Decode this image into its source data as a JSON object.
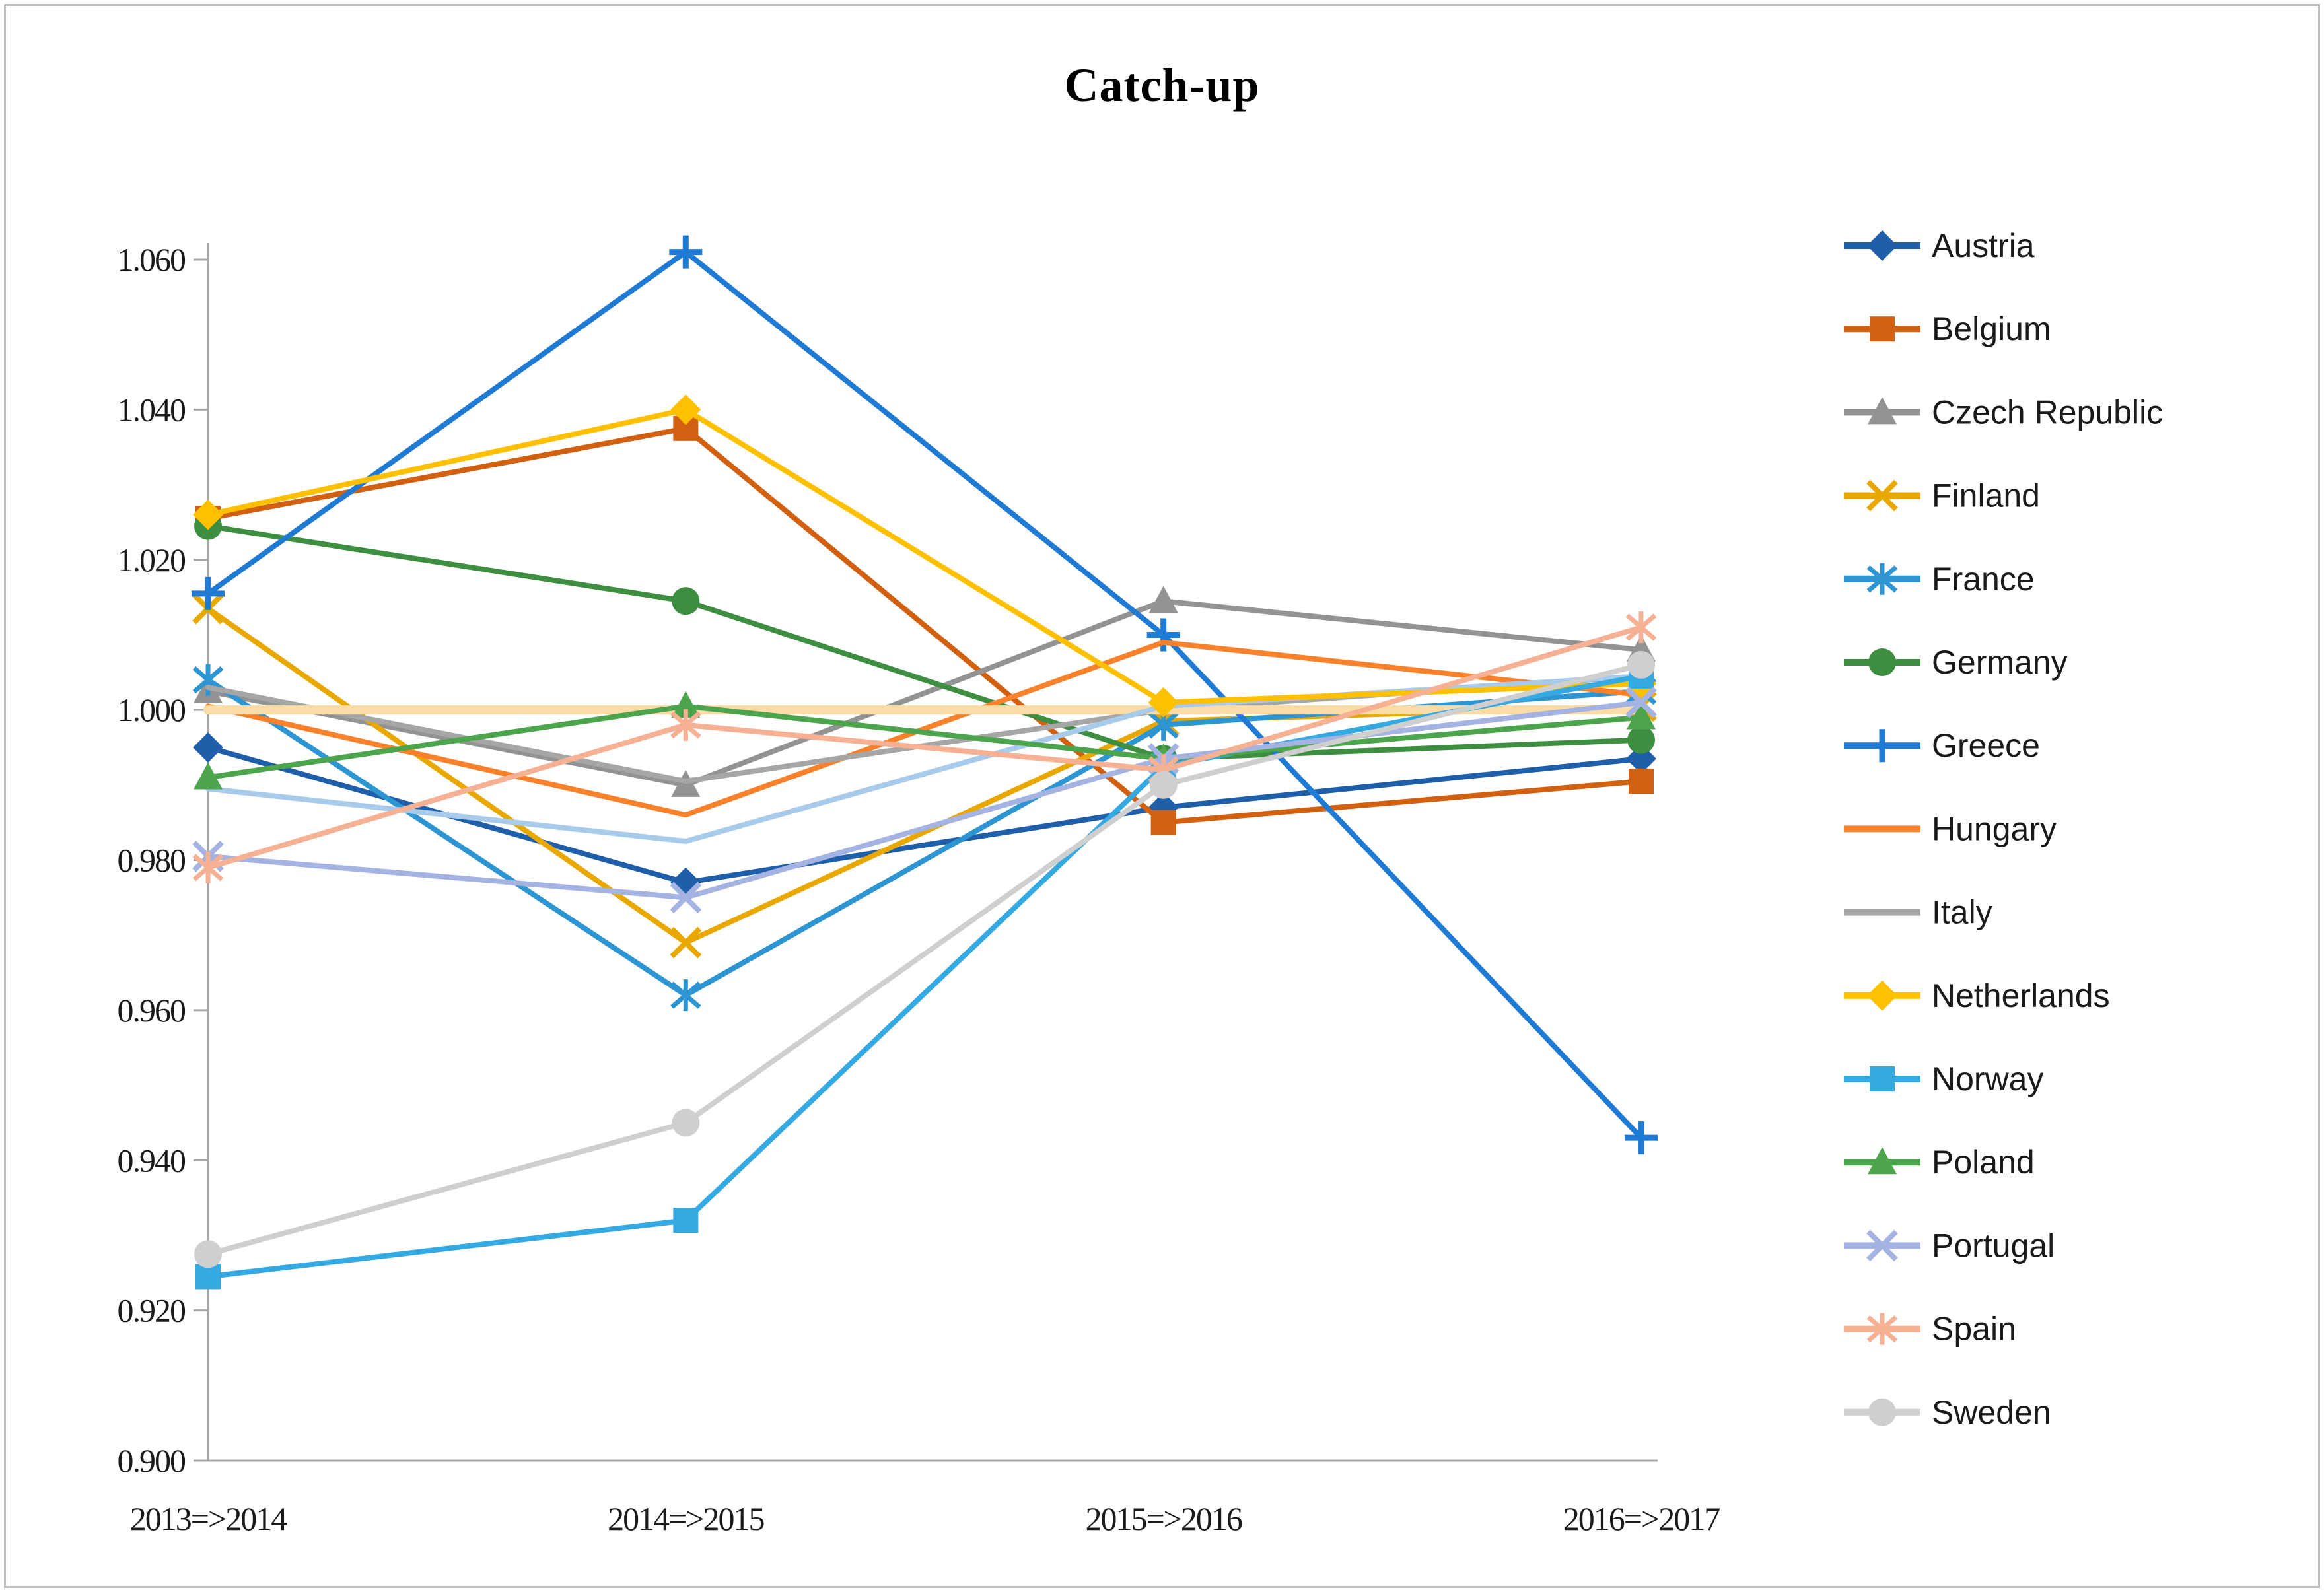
{
  "chart_data": {
    "type": "line",
    "title": "Catch-up",
    "categories": [
      "2013=>2014",
      "2014=>2015",
      "2015=>2016",
      "2016=>2017"
    ],
    "xlabel": "",
    "ylabel": "",
    "y_axis": {
      "min": 0.9,
      "max": 1.06,
      "step": 0.02,
      "tick_labels": [
        "0.900",
        "0.920",
        "0.940",
        "0.960",
        "0.980",
        "1.000",
        "1.020",
        "1.040",
        "1.060"
      ]
    },
    "grid": "off",
    "legend_position": "right",
    "series": [
      {
        "name": "Austria",
        "color": "#1F5EA8",
        "marker": "diamond",
        "values": [
          0.995,
          0.977,
          0.987,
          0.9935
        ]
      },
      {
        "name": "Belgium",
        "color": "#D26011",
        "marker": "square",
        "values": [
          1.0255,
          1.0375,
          0.985,
          0.9905
        ]
      },
      {
        "name": "Czech Republic",
        "color": "#939393",
        "marker": "triangle",
        "values": [
          1.0025,
          0.99,
          1.0145,
          1.008
        ]
      },
      {
        "name": "Finland",
        "color": "#E9A800",
        "marker": "x",
        "values": [
          1.0135,
          0.969,
          0.9985,
          1.0005
        ]
      },
      {
        "name": "France",
        "color": "#2E95D3",
        "marker": "asterisk",
        "values": [
          1.004,
          0.962,
          0.998,
          1.0025
        ]
      },
      {
        "name": "Germany",
        "color": "#3E8E41",
        "marker": "circle",
        "values": [
          1.0245,
          1.0145,
          0.9935,
          0.996
        ]
      },
      {
        "name": "Greece",
        "color": "#1F7AD4",
        "marker": "plus",
        "values": [
          1.0155,
          1.061,
          1.01,
          0.943
        ]
      },
      {
        "name": "Hungary",
        "color": "#F8822C",
        "marker": "none",
        "values": [
          1.0005,
          0.986,
          1.009,
          1.002
        ]
      },
      {
        "name": "Italy",
        "color": "#A6A6A6",
        "marker": "none",
        "values": [
          1.003,
          0.9905,
          1.0,
          1.0045
        ]
      },
      {
        "name": "Netherlands",
        "color": "#FFC000",
        "marker": "diamond",
        "values": [
          1.026,
          1.04,
          1.001,
          1.0035
        ]
      },
      {
        "name": "Norway",
        "color": "#35A9E1",
        "marker": "square",
        "values": [
          0.9245,
          0.932,
          0.9925,
          1.0045
        ]
      },
      {
        "name": "Poland",
        "color": "#4CA54C",
        "marker": "triangle",
        "values": [
          0.991,
          1.0005,
          0.9935,
          0.999
        ]
      },
      {
        "name": "Portugal",
        "color": "#A4B3E1",
        "marker": "x",
        "values": [
          0.9805,
          0.975,
          0.9935,
          1.001
        ]
      },
      {
        "name": "Spain",
        "color": "#F6B094",
        "marker": "asterisk",
        "values": [
          0.979,
          0.998,
          0.992,
          1.011
        ]
      },
      {
        "name": "Sweden",
        "color": "#CFCFCF",
        "marker": "circle",
        "values": [
          0.9275,
          0.945,
          0.99,
          1.006
        ]
      }
    ],
    "unlabeled_lines": [
      {
        "name": "pale-blue-line",
        "color": "#A8CBEC",
        "marker": "none",
        "values": [
          0.9895,
          0.9825,
          1.0005,
          1.0045
        ]
      },
      {
        "name": "reference-line-1.000",
        "color": "#FBDCA6",
        "marker": "none",
        "values": [
          1.0,
          1.0,
          1.0,
          1.0
        ]
      }
    ],
    "axis_color": "#A6A6A6",
    "border_color": "#BFBFBF"
  }
}
